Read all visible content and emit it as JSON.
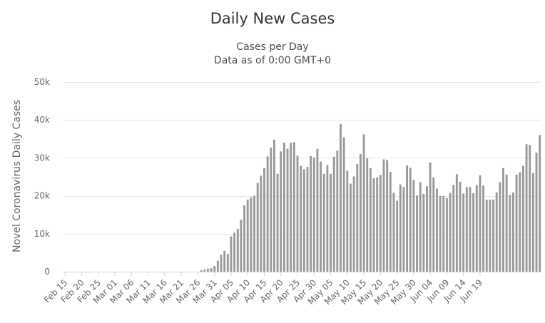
{
  "chart_data": {
    "type": "bar",
    "title": "Daily New Cases",
    "subtitle": [
      "Cases per Day",
      "Data as of 0:00 GMT+0"
    ],
    "ylabel": "Novel Coronavirus Daily Cases",
    "xlabel": "",
    "ylim": [
      0,
      50000
    ],
    "yticks": [
      0,
      10000,
      20000,
      30000,
      40000,
      50000
    ],
    "ytick_labels": [
      "0",
      "10k",
      "20k",
      "30k",
      "40k",
      "50k"
    ],
    "xtick_labels": [
      "Feb 15",
      "Feb 20",
      "Feb 25",
      "Mar 01",
      "Mar 06",
      "Mar 11",
      "Mar 16",
      "Mar 21",
      "Mar 26",
      "Mar 31",
      "Apr 05",
      "Apr 10",
      "Apr 15",
      "Apr 20",
      "Apr 25",
      "Apr 30",
      "May 05",
      "May 10",
      "May 15",
      "May 20",
      "May 25",
      "May 30",
      "Jun 04",
      "Jun 09",
      "Jun 14",
      "Jun 19"
    ],
    "tick_every": 5,
    "start_date": "Feb 15",
    "grid": true,
    "series": [
      {
        "name": "Daily Cases",
        "color": "#999999",
        "values": [
          0,
          0,
          0,
          0,
          0,
          0,
          0,
          0,
          0,
          0,
          0,
          0,
          0,
          0,
          0,
          0,
          0,
          0,
          0,
          0,
          0,
          0,
          0,
          0,
          0,
          0,
          0,
          0,
          0,
          0,
          0,
          0,
          0,
          0,
          0,
          0,
          0,
          0,
          0,
          0,
          0,
          400,
          600,
          800,
          900,
          1500,
          2900,
          4500,
          5500,
          4700,
          9300,
          10300,
          11300,
          13700,
          17500,
          19000,
          19600,
          20000,
          23400,
          25300,
          27300,
          30400,
          32700,
          34800,
          25800,
          31700,
          34000,
          32400,
          34000,
          34100,
          30600,
          27900,
          27000,
          27600,
          30500,
          30100,
          32400,
          29000,
          25800,
          28100,
          25800,
          30300,
          31900,
          38900,
          35400,
          26600,
          23200,
          25100,
          28400,
          31000,
          36200,
          29900,
          27300,
          24600,
          24800,
          25500,
          29600,
          29400,
          26300,
          20800,
          18700,
          23000,
          22300,
          28000,
          27400,
          24200,
          20100,
          23600,
          20500,
          22500,
          28800,
          24800,
          21900,
          20000,
          20000,
          19400,
          20800,
          22900,
          25700,
          23700,
          20600,
          22300,
          22300,
          20700,
          22800,
          25400,
          22700,
          19000,
          19000,
          19000,
          20900,
          23600,
          27300,
          25600,
          20200,
          20900,
          25600,
          26200,
          27900,
          33600,
          33400,
          26000,
          31400,
          36000
        ]
      }
    ]
  }
}
